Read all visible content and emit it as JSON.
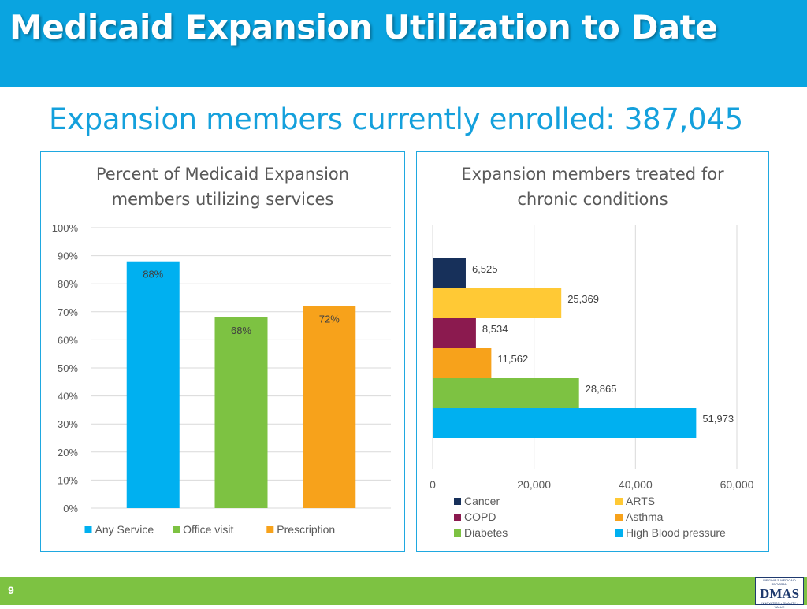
{
  "header": {
    "title": "Medicaid Expansion Utilization to Date"
  },
  "subtitle": "Expansion members currently enrolled: 387,045",
  "footer": {
    "page_number": "9"
  },
  "logo": {
    "top_text": "VIRGINIA'S MEDICAID PROGRAM",
    "main_text": "DMAS",
    "bottom_text": "INNOVATION • QUALITY • VALUE"
  },
  "chart_data": [
    {
      "type": "bar",
      "title_lines": [
        "Percent of Medicaid Expansion",
        "members utilizing services"
      ],
      "series": [
        {
          "name": "Any Service",
          "value": 88,
          "label": "88%",
          "color": "#00b0f0"
        },
        {
          "name": "Office visit",
          "value": 68,
          "label": "68%",
          "color": "#7dc242"
        },
        {
          "name": "Prescription",
          "value": 72,
          "label": "72%",
          "color": "#f7a21b"
        }
      ],
      "ylim": [
        0,
        100
      ],
      "yticks": [
        {
          "value": 0,
          "label": "0%"
        },
        {
          "value": 10,
          "label": "10%"
        },
        {
          "value": 20,
          "label": "20%"
        },
        {
          "value": 30,
          "label": "30%"
        },
        {
          "value": 40,
          "label": "40%"
        },
        {
          "value": 50,
          "label": "50%"
        },
        {
          "value": 60,
          "label": "60%"
        },
        {
          "value": 70,
          "label": "70%"
        },
        {
          "value": 80,
          "label": "80%"
        },
        {
          "value": 90,
          "label": "90%"
        },
        {
          "value": 100,
          "label": "100%"
        }
      ],
      "grid": true,
      "legend": "bottom"
    },
    {
      "type": "bar",
      "orientation": "horizontal",
      "title_lines": [
        "Expansion members treated for",
        "chronic conditions"
      ],
      "series": [
        {
          "name": "Cancer",
          "value": 6525,
          "label": "6,525",
          "color": "#17305a"
        },
        {
          "name": "ARTS",
          "value": 25369,
          "label": "25,369",
          "color": "#ffc935"
        },
        {
          "name": "COPD",
          "value": 8534,
          "label": "8,534",
          "color": "#8b1a4f"
        },
        {
          "name": "Asthma",
          "value": 11562,
          "label": "11,562",
          "color": "#f7a21b"
        },
        {
          "name": "Diabetes",
          "value": 28865,
          "label": "28,865",
          "color": "#7dc242"
        },
        {
          "name": "High Blood pressure",
          "value": 51973,
          "label": "51,973",
          "color": "#00b0f0"
        }
      ],
      "xlim": [
        0,
        60000
      ],
      "xticks": [
        {
          "value": 0,
          "label": "0"
        },
        {
          "value": 20000,
          "label": "20,000"
        },
        {
          "value": 40000,
          "label": "40,000"
        },
        {
          "value": 60000,
          "label": "60,000"
        }
      ],
      "grid": true,
      "legend": "bottom"
    }
  ]
}
